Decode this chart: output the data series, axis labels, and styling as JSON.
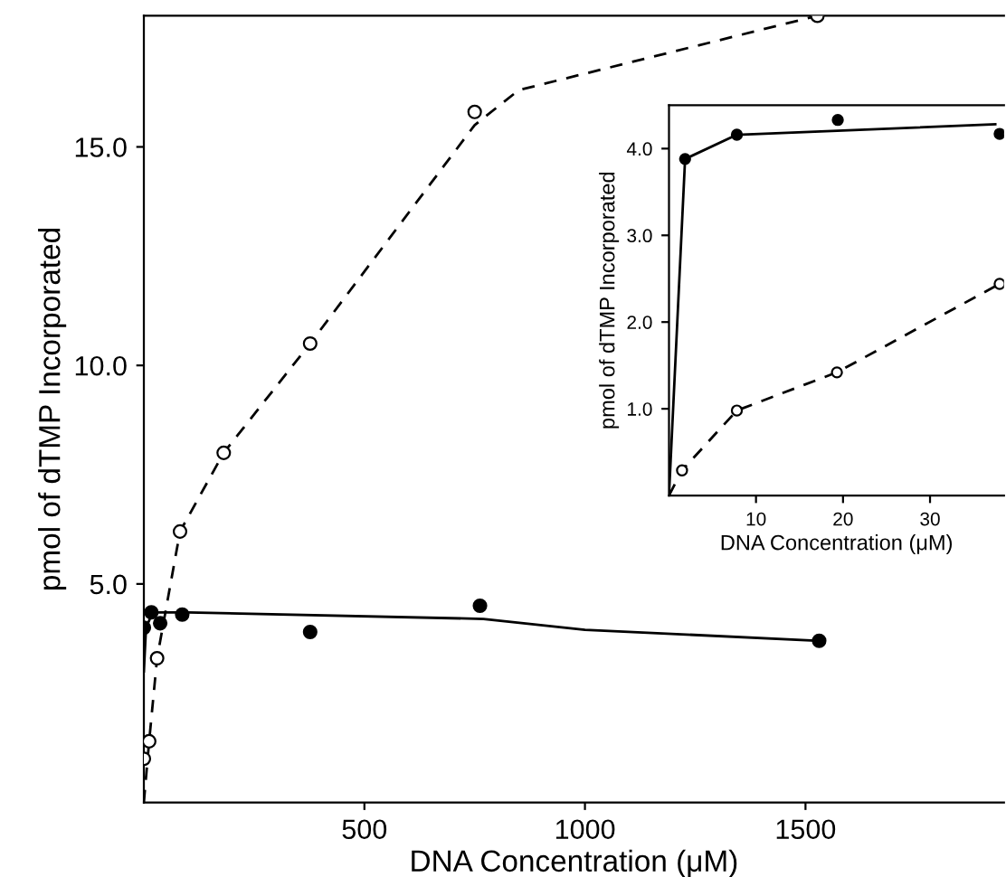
{
  "chart_data": [
    {
      "type": "line",
      "xlabel": "DNA Concentration (μM)",
      "ylabel": "pmol of dTMP Incorporated",
      "xlim": [
        0,
        1950
      ],
      "ylim": [
        0,
        18
      ],
      "xticks": [
        500,
        1000,
        1500
      ],
      "yticks": [
        {
          "value": 5,
          "label": "5.0"
        },
        {
          "value": 10,
          "label": "10.0"
        },
        {
          "value": 15,
          "label": "15.0"
        }
      ],
      "series": [
        {
          "type": "line",
          "color": "#000000",
          "line_style": "dashed",
          "marker": "none",
          "x": [
            0,
            12,
            30,
            82,
            181,
            377,
            750,
            850,
            1527
          ],
          "values": [
            0,
            1.4,
            3.3,
            6.2,
            8.0,
            10.5,
            15.5,
            16.3,
            18.0
          ]
        },
        {
          "type": "scatter",
          "color": "#ffffff",
          "marker": "circle",
          "x": [
            0,
            12,
            30,
            82,
            181,
            377,
            750,
            1527
          ],
          "values": [
            1.0,
            1.4,
            3.3,
            6.2,
            8.0,
            10.5,
            15.8,
            18.0
          ]
        },
        {
          "type": "line",
          "color": "#000000",
          "line_style": "solid",
          "marker": "none",
          "x": [
            0,
            5,
            20,
            100,
            770,
            1000,
            1531
          ],
          "values": [
            3.0,
            4.0,
            4.35,
            4.35,
            4.2,
            3.95,
            3.7
          ]
        },
        {
          "type": "scatter",
          "color": "#000000",
          "marker": "circle",
          "x": [
            0,
            17,
            37,
            87,
            377,
            762,
            1531
          ],
          "values": [
            4.0,
            4.35,
            4.1,
            4.3,
            3.9,
            4.5,
            3.7
          ]
        }
      ]
    },
    {
      "type": "line",
      "xlabel": "DNA Concentration (μM)",
      "ylabel": "pmol of dTMP Incorporated",
      "xlim": [
        0,
        38.5
      ],
      "ylim": [
        0,
        4.5
      ],
      "xticks": [
        10,
        20,
        30
      ],
      "yticks": [
        {
          "value": 1,
          "label": "1.0"
        },
        {
          "value": 2,
          "label": "2.0"
        },
        {
          "value": 3,
          "label": "3.0"
        },
        {
          "value": 4,
          "label": "4.0"
        }
      ],
      "series": [
        {
          "type": "line",
          "color": "#000000",
          "line_style": "solid",
          "marker": "none",
          "x": [
            0,
            1.85,
            7.8,
            37.5
          ],
          "values": [
            0,
            3.88,
            4.16,
            4.28
          ]
        },
        {
          "type": "scatter",
          "color": "#000000",
          "marker": "circle",
          "x": [
            1.85,
            7.8,
            19.4,
            38
          ],
          "values": [
            3.88,
            4.16,
            4.33,
            4.17
          ]
        },
        {
          "type": "line",
          "color": "#000000",
          "line_style": "dashed",
          "marker": "none",
          "x": [
            0,
            1.5,
            7.8,
            19.3,
            38
          ],
          "values": [
            0,
            0.29,
            0.98,
            1.42,
            2.44
          ]
        },
        {
          "type": "scatter",
          "color": "#ffffff",
          "marker": "circle",
          "x": [
            1.5,
            7.8,
            19.3,
            38
          ],
          "values": [
            0.29,
            0.98,
            1.42,
            2.44
          ]
        }
      ]
    }
  ]
}
